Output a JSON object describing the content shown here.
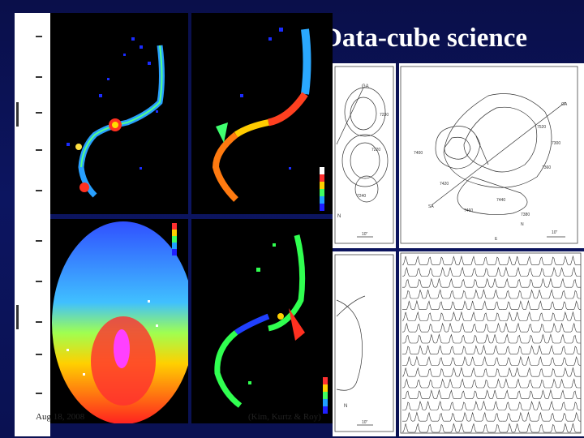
{
  "slide": {
    "title": "Data-cube science",
    "footer_left": "Aug 18, 2008",
    "footer_right": "(Kim, Kurtz & Roy)"
  },
  "maps": {
    "contour_labels_top_left": [
      "GA",
      "7230",
      "7220",
      "7240"
    ],
    "contour_labels_top_right": [
      "GA",
      "7400",
      "7520",
      "7300",
      "7360",
      "7420",
      "7440",
      "7460",
      "7380",
      "SA"
    ],
    "compass": [
      "N",
      "E"
    ],
    "scale_label": "10\""
  },
  "colors": {
    "background": "#0b1258",
    "image_bg": "#000000"
  }
}
